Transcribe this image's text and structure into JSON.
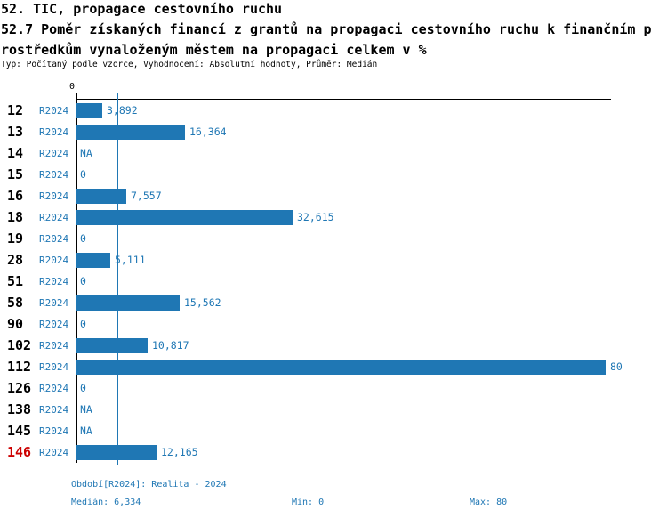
{
  "header": {
    "title_line1": "52. TIC, propagace cestovního ruchu",
    "title_line2": "52.7 Poměr získaných financí z grantů na propagaci cestovního ruchu k finančním p",
    "title_line3": "rostředkům vynaloženým městem na propagaci celkem v %",
    "meta_line": "Typ: Počítaný podle vzorce, Vyhodnocení: Absolutní hodnoty, Průměr: Medián"
  },
  "colors": {
    "bar_blue": "#1f77b4",
    "text_blue": "#1f77b4",
    "highlight_red": "#cc0000",
    "axis_black": "#000000"
  },
  "chart_data": {
    "type": "bar",
    "orientation": "horizontal",
    "title": "52.7 Poměr získaných financí z grantů na propagaci cestovního ruchu k finančním prostředkům vynaloženým městem na propagaci celkem v %",
    "xlim": [
      0,
      80
    ],
    "axis_zero_label": "0",
    "series_label": "R2024",
    "median_value": 6.334,
    "min_value": 0,
    "max_value": 80,
    "grid": false,
    "rows": [
      {
        "id": "12",
        "period": "R2024",
        "value": 3.892,
        "display": "3,892",
        "highlight": false
      },
      {
        "id": "13",
        "period": "R2024",
        "value": 16.364,
        "display": "16,364",
        "highlight": false
      },
      {
        "id": "14",
        "period": "R2024",
        "value": null,
        "display": "NA",
        "highlight": false
      },
      {
        "id": "15",
        "period": "R2024",
        "value": 0,
        "display": "0",
        "highlight": false
      },
      {
        "id": "16",
        "period": "R2024",
        "value": 7.557,
        "display": "7,557",
        "highlight": false
      },
      {
        "id": "18",
        "period": "R2024",
        "value": 32.615,
        "display": "32,615",
        "highlight": false
      },
      {
        "id": "19",
        "period": "R2024",
        "value": 0,
        "display": "0",
        "highlight": false
      },
      {
        "id": "28",
        "period": "R2024",
        "value": 5.111,
        "display": "5,111",
        "highlight": false
      },
      {
        "id": "51",
        "period": "R2024",
        "value": 0,
        "display": "0",
        "highlight": false
      },
      {
        "id": "58",
        "period": "R2024",
        "value": 15.562,
        "display": "15,562",
        "highlight": false
      },
      {
        "id": "90",
        "period": "R2024",
        "value": 0,
        "display": "0",
        "highlight": false
      },
      {
        "id": "102",
        "period": "R2024",
        "value": 10.817,
        "display": "10,817",
        "highlight": false
      },
      {
        "id": "112",
        "period": "R2024",
        "value": 80,
        "display": "80",
        "highlight": false
      },
      {
        "id": "126",
        "period": "R2024",
        "value": 0,
        "display": "0",
        "highlight": false
      },
      {
        "id": "138",
        "period": "R2024",
        "value": null,
        "display": "NA",
        "highlight": false
      },
      {
        "id": "145",
        "period": "R2024",
        "value": null,
        "display": "NA",
        "highlight": false
      },
      {
        "id": "146",
        "period": "R2024",
        "value": 12.165,
        "display": "12,165",
        "highlight": true
      }
    ]
  },
  "footer": {
    "period_label": "Období[R2024]: Realita - 2024",
    "median_label": "Medián: 6,334",
    "min_label": "Min: 0",
    "max_label": "Max: 80"
  }
}
